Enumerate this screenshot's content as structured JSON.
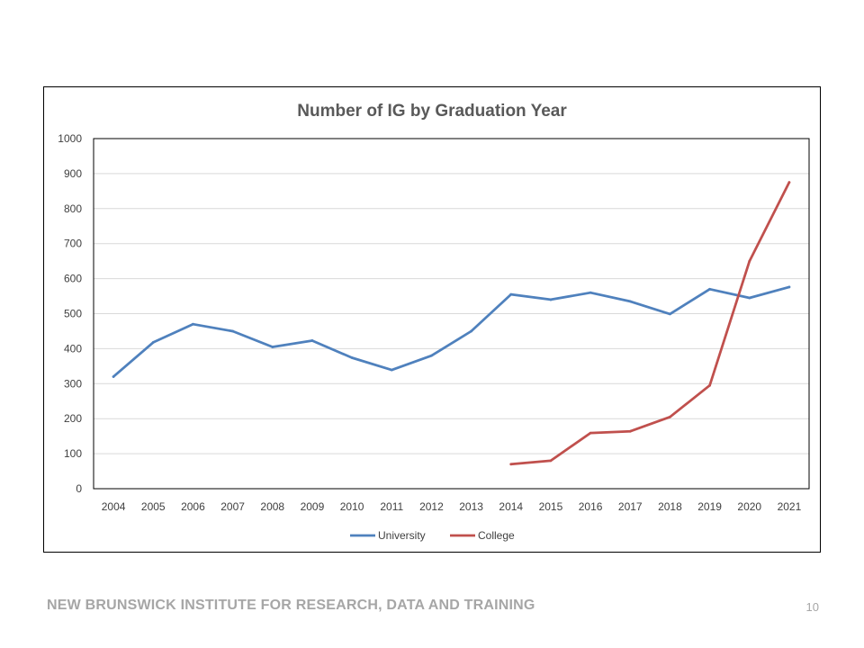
{
  "footer": {
    "organization": "NEW BRUNSWICK INSTITUTE FOR RESEARCH, DATA AND TRAINING",
    "page_number": "10"
  },
  "chart_data": {
    "type": "line",
    "title": "Number of IG by Graduation Year",
    "xlabel": "",
    "ylabel": "",
    "categories": [
      "2004",
      "2005",
      "2006",
      "2007",
      "2008",
      "2009",
      "2010",
      "2011",
      "2012",
      "2013",
      "2014",
      "2015",
      "2016",
      "2017",
      "2018",
      "2019",
      "2020",
      "2021"
    ],
    "ylim": [
      0,
      1000
    ],
    "yticks": [
      0,
      100,
      200,
      300,
      400,
      500,
      600,
      700,
      800,
      900,
      1000
    ],
    "grid": true,
    "legend_position": "bottom",
    "series": [
      {
        "name": "University",
        "color": "#4f81bd",
        "values": [
          320,
          418,
          470,
          450,
          405,
          423,
          374,
          339,
          380,
          450,
          555,
          540,
          560,
          535,
          499,
          570,
          545,
          576
        ]
      },
      {
        "name": "College",
        "color": "#c0504d",
        "values": [
          null,
          null,
          null,
          null,
          null,
          null,
          null,
          null,
          null,
          null,
          70,
          80,
          159,
          164,
          205,
          295,
          650,
          875
        ]
      }
    ]
  }
}
